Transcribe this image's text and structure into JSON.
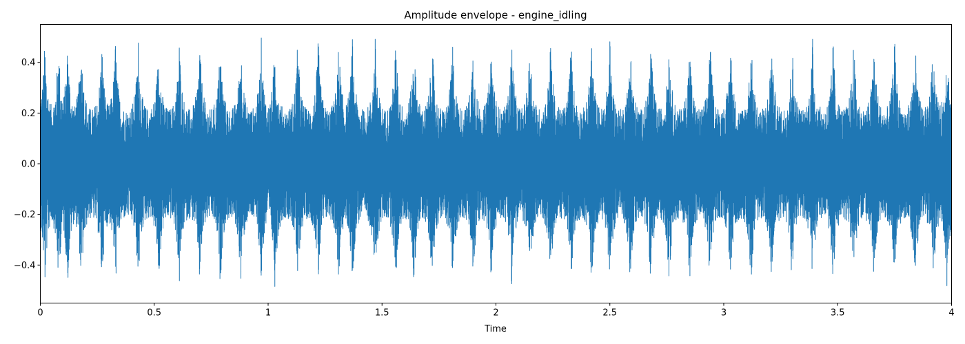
{
  "chart_data": {
    "type": "line",
    "title": "Amplitude envelope - engine_idling",
    "xlabel": "Time",
    "ylabel": "",
    "xlim": [
      0,
      4
    ],
    "ylim": [
      -0.55,
      0.55
    ],
    "x_ticks": [
      0,
      0.5,
      1,
      1.5,
      2,
      2.5,
      3,
      3.5,
      4
    ],
    "x_tick_labels": [
      "0",
      "0.5",
      "1",
      "1.5",
      "2",
      "2.5",
      "3",
      "3.5",
      "4"
    ],
    "y_ticks": [
      -0.4,
      -0.2,
      0.0,
      0.2,
      0.4
    ],
    "y_tick_labels": [
      "−0.4",
      "−0.2",
      "0.0",
      "0.2",
      "0.4"
    ],
    "grid": false,
    "legend": "none",
    "series": [
      {
        "color": "#1f77b4",
        "sample_rate_hz": 2000,
        "peak_amplitude": 0.5,
        "dense_band": [
          -0.2,
          0.2
        ],
        "spike_times": [
          0.02,
          0.08,
          0.12,
          0.18,
          0.27,
          0.33,
          0.43,
          0.52,
          0.61,
          0.7,
          0.79,
          0.88,
          0.97,
          1.03,
          1.13,
          1.22,
          1.31,
          1.37,
          1.47,
          1.56,
          1.64,
          1.72,
          1.81,
          1.9,
          1.98,
          2.07,
          2.15,
          2.24,
          2.33,
          2.42,
          2.5,
          2.59,
          2.68,
          2.76,
          2.85,
          2.94,
          3.03,
          3.12,
          3.21,
          3.3,
          3.39,
          3.48,
          3.57,
          3.66,
          3.75,
          3.84,
          3.92,
          3.98
        ]
      }
    ]
  }
}
